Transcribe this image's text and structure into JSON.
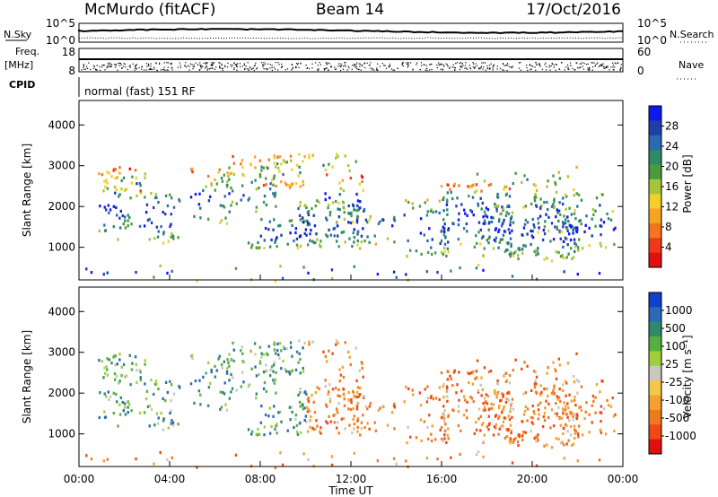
{
  "header": {
    "station": "McMurdo (fitACF)",
    "beam": "Beam 14",
    "date": "17/Oct/2016"
  },
  "side_labels": {
    "nsky": "N.Sky",
    "nsearch": "N.Search",
    "freq": "Freq.",
    "freq_unit": "[MHz]",
    "nave": "Nave",
    "cpid": "CPID"
  },
  "noise_axis": {
    "left_top": "10^5",
    "left_bottom": "10^0",
    "right_top": "10^5",
    "right_bottom": "10^0"
  },
  "freq_axis": {
    "left_top": "18",
    "left_bottom": "8",
    "right_top": "60",
    "right_bottom": "0"
  },
  "cpid_text": "normal (fast) 151 RF",
  "chart_data": [
    {
      "type": "heatmap",
      "name": "power",
      "ylabel": "Slant Range [km]",
      "ylim": [
        200,
        4600
      ],
      "yticks": [
        "1000",
        "2000",
        "3000",
        "4000"
      ],
      "colorbar": {
        "label": "Power [dB]",
        "ticks": [
          "4",
          "8",
          "12",
          "16",
          "20",
          "24",
          "28"
        ],
        "colors": [
          "#1018f0",
          "#1d3fa8",
          "#2a6ab0",
          "#2f8a6a",
          "#4c9a3c",
          "#a6c63a",
          "#f2cf2c",
          "#f6a424",
          "#f57420",
          "#ee3a1a",
          "#e01010"
        ]
      }
    },
    {
      "type": "heatmap",
      "name": "velocity",
      "ylabel": "Slant Range [km]",
      "xlabel": "Time UT",
      "ylim": [
        200,
        4600
      ],
      "yticks": [
        "1000",
        "2000",
        "3000",
        "4000"
      ],
      "xticks": [
        "00:00",
        "04:00",
        "08:00",
        "12:00",
        "16:00",
        "20:00",
        "00:00"
      ],
      "colorbar": {
        "label": "Velocity [m s⁻¹]",
        "ticks": [
          "1000",
          "500",
          "100",
          "25",
          "-25",
          "-100",
          "-500",
          "-1000"
        ],
        "colors": [
          "#1040c8",
          "#2a6ab8",
          "#2f8a6a",
          "#55b040",
          "#9fcf3a",
          "#c8c8c0",
          "#f2c84a",
          "#f5a030",
          "#f27a1e",
          "#ee4a18",
          "#e01010"
        ]
      }
    }
  ],
  "colors": {
    "frame": "#000000"
  }
}
